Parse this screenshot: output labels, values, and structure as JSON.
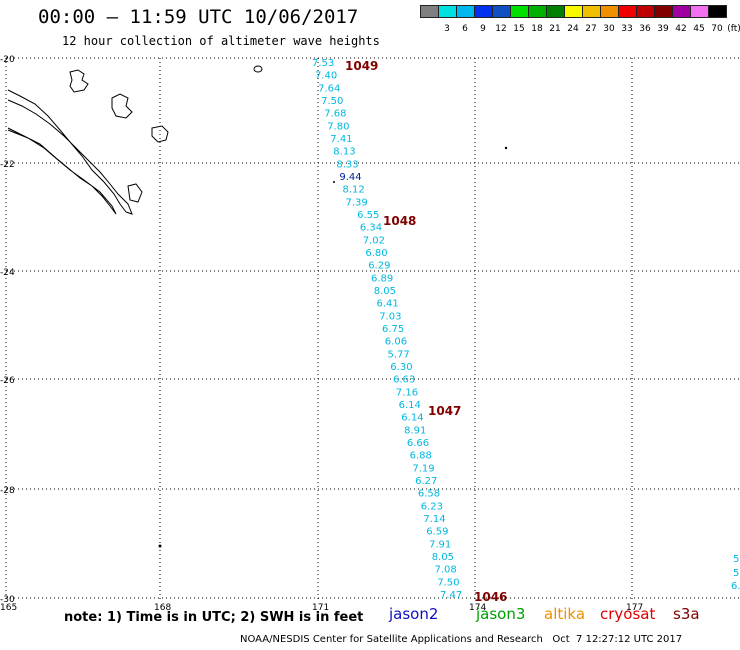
{
  "header": {
    "title": "00:00 — 11:59 UTC 10/06/2017",
    "subtitle": "12 hour collection of altimeter wave heights"
  },
  "legend": {
    "unit_label": "(ft)",
    "bins": [
      {
        "label": "",
        "color": "#808080"
      },
      {
        "label": "3",
        "color": "#00e0e0"
      },
      {
        "label": "6",
        "color": "#00b8f0"
      },
      {
        "label": "9",
        "color": "#0030f0"
      },
      {
        "label": "12",
        "color": "#1050c0"
      },
      {
        "label": "15",
        "color": "#00e000"
      },
      {
        "label": "18",
        "color": "#00b000"
      },
      {
        "label": "21",
        "color": "#008000"
      },
      {
        "label": "24",
        "color": "#f8f800"
      },
      {
        "label": "27",
        "color": "#f0c000"
      },
      {
        "label": "30",
        "color": "#f09000"
      },
      {
        "label": "33",
        "color": "#f00000"
      },
      {
        "label": "36",
        "color": "#c00000"
      },
      {
        "label": "39",
        "color": "#800000"
      },
      {
        "label": "42",
        "color": "#a000a0"
      },
      {
        "label": "45",
        "color": "#f070f0"
      },
      {
        "label": "70",
        "color": "#000000"
      }
    ]
  },
  "map": {
    "lat_labels": [
      "-20",
      "-22",
      "-24",
      "-26",
      "-28",
      "-30"
    ],
    "lon_labels": [
      "165",
      "168",
      "171",
      "174",
      "177"
    ],
    "track_color": "#00b8e0",
    "track_values": [
      "7.53",
      "7.40",
      "7.64",
      "7.50",
      "7.68",
      "7.80",
      "7.41",
      "8.13",
      "8.33",
      "9.44",
      "8.12",
      "7.39",
      "6.55",
      "6.34",
      "7.02",
      "6.80",
      "6.29",
      "6.89",
      "8.05",
      "6.41",
      "7.03",
      "6.75",
      "6.06",
      "5.77",
      "6.30",
      "6.63",
      "7.16",
      "6.14",
      "6.14",
      "8.91",
      "6.66",
      "6.88",
      "7.19",
      "6.27",
      "6.58",
      "6.23",
      "7.14",
      "6.59",
      "7.91",
      "8.05",
      "7.08",
      "7.50",
      "7.47"
    ],
    "track_highlight_index": 9,
    "track_highlight_color": "#0020a0",
    "pressure_color": "#800000",
    "pressure_labels": [
      "1049",
      "1048",
      "1047",
      "1046"
    ],
    "edge_values": [
      "5",
      "5",
      "6."
    ]
  },
  "note": "note: 1) Time is in UTC; 2) SWH is in feet",
  "satellites": [
    {
      "name": "jason2",
      "color": "#1010c0"
    },
    {
      "name": "jason3",
      "color": "#00a000"
    },
    {
      "name": "altika",
      "color": "#f09000"
    },
    {
      "name": "cryosat",
      "color": "#e00000"
    },
    {
      "name": "s3a",
      "color": "#800000"
    }
  ],
  "footer": "NOAA/NESDIS Center for Satellite Applications and Research   Oct  7 12:27:12 UTC 2017"
}
